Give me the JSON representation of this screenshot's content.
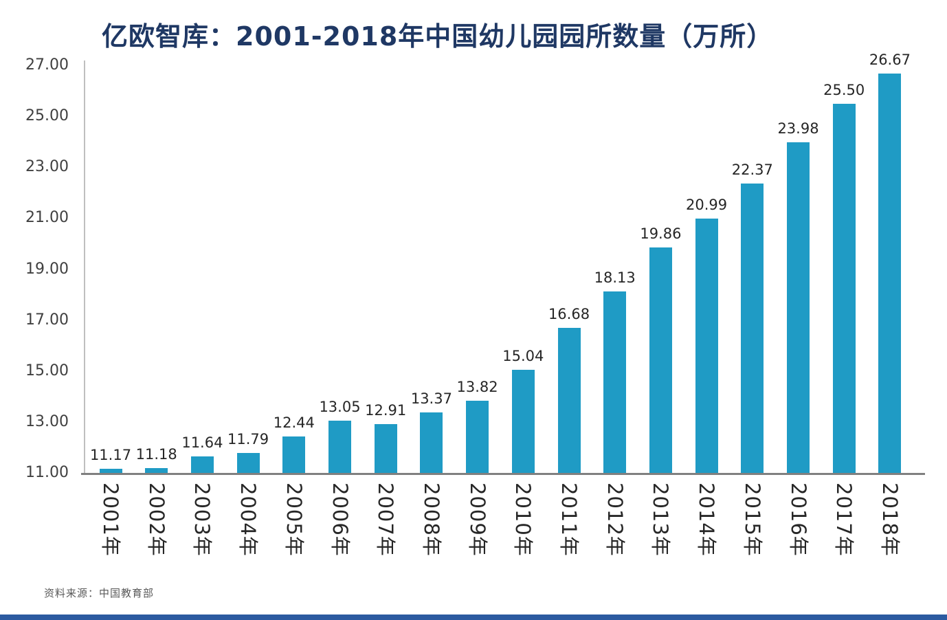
{
  "chart_data": {
    "type": "bar",
    "title": "亿欧智库：2001-2018年中国幼儿园园所数量（万所）",
    "categories": [
      "2001年",
      "2002年",
      "2003年",
      "2004年",
      "2005年",
      "2006年",
      "2007年",
      "2008年",
      "2009年",
      "2010年",
      "2011年",
      "2012年",
      "2013年",
      "2014年",
      "2015年",
      "2016年",
      "2017年",
      "2018年"
    ],
    "values": [
      11.17,
      11.18,
      11.64,
      11.79,
      12.44,
      13.05,
      12.91,
      13.37,
      13.82,
      15.04,
      16.68,
      18.13,
      19.86,
      20.99,
      22.37,
      23.98,
      25.5,
      26.67
    ],
    "value_labels": [
      "11.17",
      "11.18",
      "11.64",
      "11.79",
      "12.44",
      "13.05",
      "12.91",
      "13.37",
      "13.82",
      "15.04",
      "16.68",
      "18.13",
      "19.86",
      "20.99",
      "22.37",
      "23.98",
      "25.50",
      "26.67"
    ],
    "xlabel": "",
    "ylabel": "",
    "ylim": [
      11,
      27
    ],
    "y_ticks": [
      "27.00",
      "25.00",
      "23.00",
      "21.00",
      "19.00",
      "17.00",
      "15.00",
      "13.00",
      "11.00"
    ],
    "grid": false,
    "legend": false,
    "bar_color": "#1F9BC5"
  },
  "colors": {
    "title": "#1F3864",
    "axis_label": "#404040",
    "value_label": "#262626",
    "y_axis_line": "#BFBFBF",
    "x_axis_line": "#808080",
    "source_note": "#595959",
    "footer_bar": "#2C5AA0"
  },
  "source_note": "资料来源：中国教育部"
}
